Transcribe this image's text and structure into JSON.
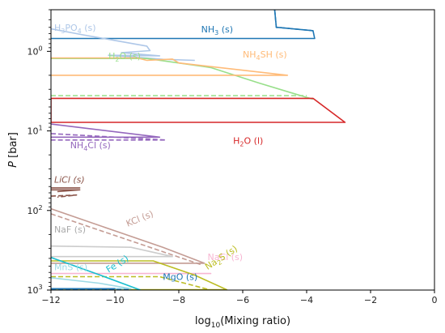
{
  "chart_data": {
    "type": "line",
    "xlabel": "log10(Mixing ratio)",
    "xlabel_main": "log",
    "xlabel_sub": "10",
    "xlabel_rest": "(Mixing ratio)",
    "ylabel": "P [bar]",
    "ylabel_var": "P",
    "ylabel_unit": "[bar]",
    "x_scale": "linear",
    "y_scale": "log",
    "y_inverted": true,
    "xlim": [
      -12,
      0
    ],
    "ylim": [
      1000,
      0.3
    ],
    "x_ticks": [
      -12,
      -10,
      -8,
      -6,
      -4,
      -2,
      0
    ],
    "x_tick_labels": [
      "−12",
      "−10",
      "−8",
      "−6",
      "−4",
      "−2",
      "0"
    ],
    "y_ticks": [
      1,
      10,
      100,
      1000
    ],
    "y_tick_labels": [
      {
        "base": "10",
        "exp": "0"
      },
      {
        "base": "10",
        "exp": "1"
      },
      {
        "base": "10",
        "exp": "2"
      },
      {
        "base": "10",
        "exp": "3"
      }
    ],
    "legend": "none",
    "grid": false,
    "annotations": [
      {
        "label": "H3PO4 (s)",
        "parts": [
          [
            "H",
            0
          ],
          [
            "3",
            1
          ],
          [
            "PO",
            0
          ],
          [
            "4",
            1
          ],
          [
            " (s)",
            0
          ]
        ],
        "x": -11.9,
        "y": 0.55,
        "color": "#aec7e8",
        "rotate": 0,
        "italic": false
      },
      {
        "label": "NH3 (s)",
        "parts": [
          [
            "NH",
            0
          ],
          [
            "3",
            1
          ],
          [
            " (s)",
            0
          ]
        ],
        "x": -7.3,
        "y": 0.58,
        "color": "#1f77b4",
        "rotate": 0,
        "italic": false
      },
      {
        "label": "H2O (s)",
        "parts": [
          [
            "H",
            0
          ],
          [
            "2",
            1
          ],
          [
            "O (s)",
            0
          ]
        ],
        "x": -10.2,
        "y": 1.25,
        "color": "#98df8a",
        "rotate": 0,
        "italic": false
      },
      {
        "label": "NH4SH (s)",
        "parts": [
          [
            "NH",
            0
          ],
          [
            "4",
            1
          ],
          [
            "SH (s)",
            0
          ]
        ],
        "x": -6.0,
        "y": 1.2,
        "color": "#ffbb78",
        "rotate": 0,
        "italic": false
      },
      {
        "label": "H2O (l)",
        "parts": [
          [
            "H",
            0
          ],
          [
            "2",
            1
          ],
          [
            "O (l)",
            0
          ]
        ],
        "x": -6.3,
        "y": 14.5,
        "color": "#d62728",
        "rotate": 0,
        "italic": false
      },
      {
        "label": "NH4Cl (s)",
        "parts": [
          [
            "NH",
            0
          ],
          [
            "4",
            1
          ],
          [
            "Cl (s)",
            0
          ]
        ],
        "x": -11.4,
        "y": 16.5,
        "color": "#9467bd",
        "rotate": 0,
        "italic": false
      },
      {
        "label": "LiCl (s)",
        "parts": [
          [
            "LiCl (s)",
            0
          ]
        ],
        "x": -11.9,
        "y": 45,
        "color": "#8c564b",
        "rotate": 0,
        "italic": true
      },
      {
        "label": "KCl (s)",
        "parts": [
          [
            "KCl (s)",
            0
          ]
        ],
        "x": -9.6,
        "y": 160,
        "color": "#c49c94",
        "rotate": -22,
        "italic": false
      },
      {
        "label": "NaF (s)",
        "parts": [
          [
            "NaF (s)",
            0
          ]
        ],
        "x": -11.9,
        "y": 190,
        "color": "#aaaaaa",
        "rotate": 0,
        "italic": false
      },
      {
        "label": "NaCl (s)",
        "parts": [
          [
            "NaCl (s)",
            0
          ]
        ],
        "x": -7.1,
        "y": 420,
        "color": "#f7b6d2",
        "rotate": 0,
        "italic": false
      },
      {
        "label": "Na2S (s)",
        "parts": [
          [
            "Na",
            0
          ],
          [
            "2",
            1
          ],
          [
            "S (s)",
            0
          ]
        ],
        "x": -7.1,
        "y": 560,
        "color": "#bcbd22",
        "rotate": -33,
        "italic": false
      },
      {
        "label": "MnS (s)",
        "parts": [
          [
            "MnS (s)",
            0
          ]
        ],
        "x": -11.9,
        "y": 560,
        "color": "#9edae5",
        "rotate": 0,
        "italic": false
      },
      {
        "label": "Fe (s)",
        "parts": [
          [
            "Fe (s)",
            0
          ]
        ],
        "x": -10.2,
        "y": 610,
        "color": "#17becf",
        "rotate": -32,
        "italic": false
      },
      {
        "label": "MgO (s)",
        "parts": [
          [
            "MgO (s)",
            0
          ]
        ],
        "x": -8.5,
        "y": 750,
        "color": "#1f77b4",
        "rotate": 0,
        "italic": false
      }
    ],
    "series": [
      {
        "color": "#1f77b4",
        "dash": false,
        "x": [
          -5.0,
          -4.95,
          -4.9,
          -3.8,
          -3.75,
          -12.0
        ],
        "y": [
          0.3,
          0.5,
          0.5,
          0.55,
          0.69,
          0.69
        ]
      },
      {
        "color": "#1f77b4",
        "dash": true,
        "x": [
          -5.0,
          -4.95,
          -4.9,
          -3.8
        ],
        "y": [
          0.3,
          0.5,
          0.5,
          0.55
        ]
      },
      {
        "color": "#aec7e8",
        "dash": false,
        "x": [
          -12.0,
          -11.0,
          -10.0,
          -9.0,
          -8.9,
          -9.8,
          -8.6,
          -10.2,
          -9.2,
          -8.5,
          -7.5
        ],
        "y": [
          0.52,
          0.62,
          0.73,
          0.86,
          0.98,
          1.04,
          1.14,
          1.12,
          1.2,
          1.26,
          1.3
        ]
      },
      {
        "color": "#98df8a",
        "dash": false,
        "x": [
          -12.0,
          -9.0,
          -7.0,
          -5.5,
          -4.5,
          -3.8
        ],
        "y": [
          1.23,
          1.23,
          1.6,
          2.5,
          3.3,
          4.0
        ]
      },
      {
        "color": "#98df8a",
        "dash": true,
        "x": [
          -12.0,
          -4.0
        ],
        "y": [
          3.6,
          3.6
        ]
      },
      {
        "color": "#ffbb78",
        "dash": false,
        "x": [
          -12.0,
          -9.3,
          -9.0,
          -8.2,
          -8.0,
          -4.6,
          -12.0
        ],
        "y": [
          1.21,
          1.21,
          1.3,
          1.25,
          1.4,
          2.0,
          2.0
        ]
      },
      {
        "color": "#d62728",
        "dash": false,
        "x": [
          -12.0,
          -3.8,
          -2.8,
          -12.0,
          -12.0
        ],
        "y": [
          3.9,
          3.9,
          7.8,
          7.8,
          3.9
        ]
      },
      {
        "color": "#9467bd",
        "dash": false,
        "x": [
          -12.0,
          -8.6,
          -12.0
        ],
        "y": [
          8.2,
          12.0,
          12.0
        ]
      },
      {
        "color": "#9467bd",
        "dash": true,
        "x": [
          -12.0,
          -8.4,
          -12.0
        ],
        "y": [
          10.8,
          13.0,
          13.0
        ]
      },
      {
        "color": "#8c564b",
        "dash": false,
        "x": [
          -12.0,
          -11.1,
          -12.0
        ],
        "y": [
          52,
          52,
          52
        ]
      },
      {
        "color": "#8c564b",
        "dash": false,
        "x": [
          -12.0,
          -11.1,
          -11.8
        ],
        "y": [
          55,
          55,
          58
        ]
      },
      {
        "color": "#8c564b",
        "dash": true,
        "x": [
          -12.0,
          -11.2,
          -11.8
        ],
        "y": [
          66,
          64,
          68
        ]
      },
      {
        "color": "#c49c94",
        "dash": false,
        "x": [
          -12.0,
          -10.0,
          -8.5,
          -7.2,
          -12.0
        ],
        "y": [
          95,
          180,
          290,
          460,
          460
        ]
      },
      {
        "color": "#c49c94",
        "dash": true,
        "x": [
          -12.0,
          -7.3
        ],
        "y": [
          110,
          480
        ]
      },
      {
        "color": "#cccccc",
        "dash": false,
        "x": [
          -12.0,
          -9.5,
          -8.2,
          -12.0
        ],
        "y": [
          280,
          290,
          380,
          380
        ]
      },
      {
        "color": "#f7b6d2",
        "dash": false,
        "x": [
          -12.0,
          -7.0,
          -12.0
        ],
        "y": [
          620,
          620,
          620
        ]
      },
      {
        "color": "#bcbd22",
        "dash": false,
        "x": [
          -12.0,
          -8.8,
          -7.5,
          -6.5,
          -12.0
        ],
        "y": [
          430,
          430,
          650,
          990,
          990
        ]
      },
      {
        "color": "#bcbd22",
        "dash": true,
        "x": [
          -12.0,
          -8.6,
          -7.0,
          -12.0
        ],
        "y": [
          680,
          680,
          1000,
          1000
        ]
      },
      {
        "color": "#9edae5",
        "dash": false,
        "x": [
          -12.0,
          -10.5,
          -9.5,
          -12.0
        ],
        "y": [
          700,
          820,
          960,
          960
        ]
      },
      {
        "color": "#17becf",
        "dash": false,
        "x": [
          -12.0,
          -10.5,
          -9.2
        ],
        "y": [
          390,
          640,
          1000
        ]
      },
      {
        "color": "#1f77b4",
        "dash": false,
        "x": [
          -12.0,
          -10.0,
          -12.0
        ],
        "y": [
          960,
          960,
          960
        ]
      },
      {
        "color": "#1f77b4",
        "dash": true,
        "x": [
          -12.0,
          -9.5
        ],
        "y": [
          985,
          985
        ]
      }
    ]
  }
}
